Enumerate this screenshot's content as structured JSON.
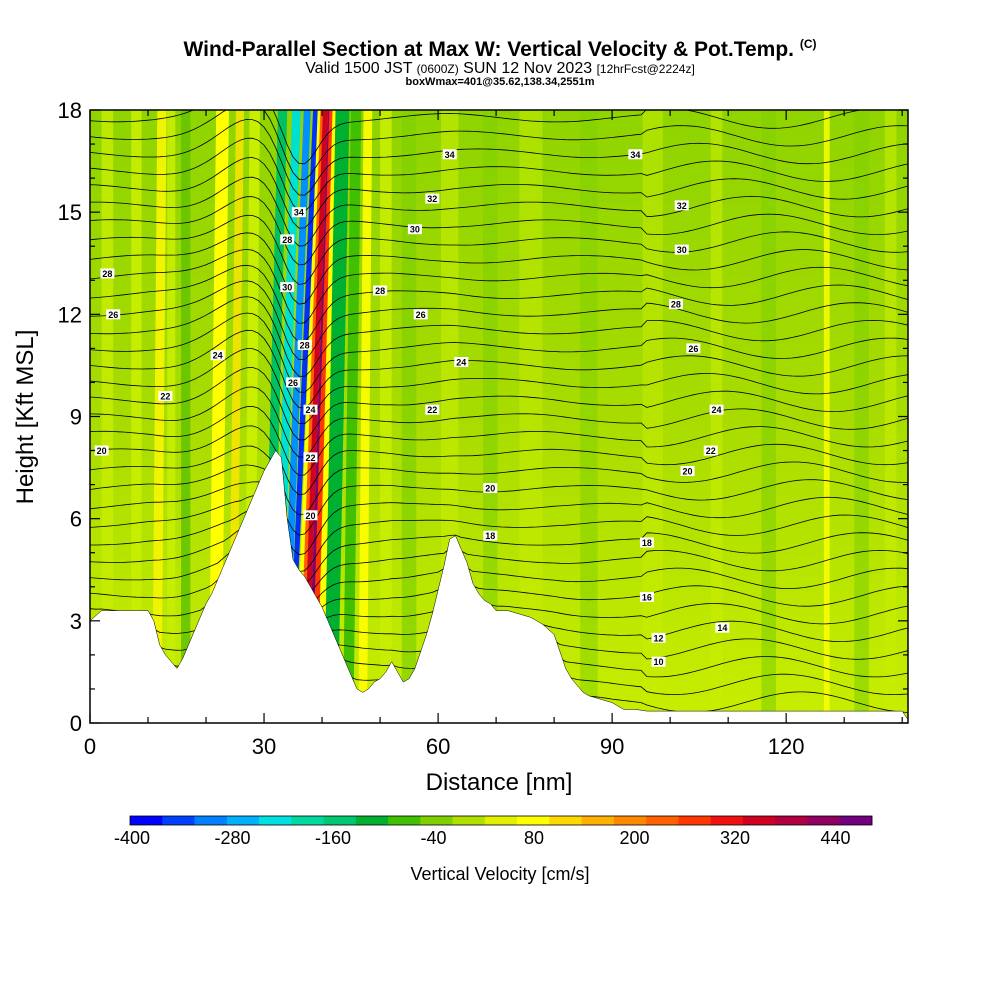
{
  "chart_data": {
    "type": "heatmap",
    "title": "Wind-Parallel Section at Max W: Vertical Velocity & Pot.Temp.",
    "title_mark": "(C)",
    "subtitle_parts": [
      "Valid 1500 JST",
      "(0600Z)",
      "SUN 12 Nov 2023",
      "[12hrFcst@2224z]"
    ],
    "subtitle2": "boxWmax=401@35.62,138.34,2551m",
    "xlabel": "Distance [nm]",
    "ylabel": "Height [Kft MSL]",
    "xlim": [
      0,
      141
    ],
    "ylim": [
      0,
      18
    ],
    "x_ticks": [
      0,
      30,
      60,
      90,
      120
    ],
    "y_ticks": [
      0,
      3,
      6,
      9,
      12,
      15,
      18
    ],
    "colorbar": {
      "title": "Vertical Velocity [cm/s]",
      "labels": [
        "-400",
        "-280",
        "-160",
        "-40",
        "80",
        "200",
        "320",
        "440"
      ],
      "colors": [
        "#0000ff",
        "#0040ff",
        "#0080ff",
        "#00b0ff",
        "#00e0e0",
        "#00d8a0",
        "#00c870",
        "#00b030",
        "#40c000",
        "#80d000",
        "#b0e000",
        "#e0f000",
        "#ffff00",
        "#ffd800",
        "#ffb000",
        "#ff8800",
        "#ff6000",
        "#ff3800",
        "#f01010",
        "#d00020",
        "#b00040",
        "#900060",
        "#700080"
      ]
    },
    "terrain_profile": {
      "x": [
        0,
        2,
        4,
        6,
        8,
        10,
        11,
        12,
        13,
        14,
        15,
        16,
        17,
        18,
        19,
        20,
        21,
        22,
        23,
        24,
        25,
        26,
        27,
        28,
        29,
        30,
        31,
        32,
        33,
        34,
        35,
        36,
        37,
        38,
        39,
        40,
        41,
        42,
        43,
        44,
        45,
        46,
        47,
        48,
        49,
        50,
        51,
        52,
        53,
        54,
        55,
        56,
        57,
        58,
        59,
        60,
        61,
        62,
        63,
        64,
        65,
        66,
        67,
        68,
        69,
        70,
        72,
        74,
        76,
        78,
        80,
        81,
        82,
        83,
        84,
        85,
        86,
        88,
        90,
        91,
        92,
        94,
        96,
        100,
        105,
        110,
        115,
        120,
        125,
        130,
        135,
        140,
        141
      ],
      "height": [
        3.0,
        3.3,
        3.3,
        3.3,
        3.3,
        3.3,
        3.0,
        2.3,
        2.0,
        1.8,
        1.6,
        1.9,
        2.3,
        2.7,
        3.1,
        3.5,
        3.8,
        4.2,
        4.6,
        5.0,
        5.4,
        5.8,
        6.2,
        6.6,
        7.0,
        7.4,
        7.7,
        8.0,
        7.8,
        6.0,
        4.8,
        4.5,
        4.3,
        4.0,
        3.7,
        3.4,
        3.0,
        2.6,
        2.2,
        1.8,
        1.4,
        1.0,
        0.9,
        1.0,
        1.2,
        1.3,
        1.5,
        1.8,
        1.5,
        1.2,
        1.3,
        1.6,
        2.1,
        2.6,
        3.2,
        3.9,
        4.6,
        5.4,
        5.5,
        5.1,
        4.7,
        4.1,
        3.8,
        3.6,
        3.5,
        3.3,
        3.3,
        3.2,
        3.1,
        2.9,
        2.6,
        2.1,
        1.6,
        1.3,
        1.1,
        0.9,
        0.8,
        0.7,
        0.6,
        0.5,
        0.4,
        0.4,
        0.35,
        0.35,
        0.35,
        0.35,
        0.35,
        0.35,
        0.35,
        0.35,
        0.35,
        0.35,
        0.1
      ]
    },
    "theta_contour_labels": [
      {
        "value": "34",
        "x": 62,
        "y": 16.7
      },
      {
        "value": "34",
        "x": 94,
        "y": 16.7
      },
      {
        "value": "32",
        "x": 59,
        "y": 15.4
      },
      {
        "value": "32",
        "x": 102,
        "y": 15.2
      },
      {
        "value": "34",
        "x": 36,
        "y": 15.0
      },
      {
        "value": "30",
        "x": 56,
        "y": 14.5
      },
      {
        "value": "30",
        "x": 102,
        "y": 13.9
      },
      {
        "value": "28",
        "x": 3,
        "y": 13.2
      },
      {
        "value": "28",
        "x": 34,
        "y": 14.2
      },
      {
        "value": "28",
        "x": 50,
        "y": 12.7
      },
      {
        "value": "28",
        "x": 101,
        "y": 12.3
      },
      {
        "value": "26",
        "x": 4,
        "y": 12.0
      },
      {
        "value": "26",
        "x": 57,
        "y": 12.0
      },
      {
        "value": "26",
        "x": 104,
        "y": 11.0
      },
      {
        "value": "30",
        "x": 34,
        "y": 12.8
      },
      {
        "value": "28",
        "x": 37,
        "y": 11.1
      },
      {
        "value": "24",
        "x": 22,
        "y": 10.8
      },
      {
        "value": "24",
        "x": 64,
        "y": 10.6
      },
      {
        "value": "26",
        "x": 35,
        "y": 10.0
      },
      {
        "value": "22",
        "x": 13,
        "y": 9.6
      },
      {
        "value": "24",
        "x": 38,
        "y": 9.2
      },
      {
        "value": "22",
        "x": 59,
        "y": 9.2
      },
      {
        "value": "24",
        "x": 108,
        "y": 9.2
      },
      {
        "value": "20",
        "x": 2,
        "y": 8.0
      },
      {
        "value": "22",
        "x": 38,
        "y": 7.8
      },
      {
        "value": "22",
        "x": 107,
        "y": 8.0
      },
      {
        "value": "20",
        "x": 103,
        "y": 7.4
      },
      {
        "value": "20",
        "x": 69,
        "y": 6.9
      },
      {
        "value": "20",
        "x": 38,
        "y": 6.1
      },
      {
        "value": "18",
        "x": 69,
        "y": 5.5
      },
      {
        "value": "18",
        "x": 96,
        "y": 5.3
      },
      {
        "value": "16",
        "x": 96,
        "y": 3.7
      },
      {
        "value": "14",
        "x": 109,
        "y": 2.8
      },
      {
        "value": "12",
        "x": 98,
        "y": 2.5
      },
      {
        "value": "10",
        "x": 98,
        "y": 1.8
      }
    ]
  }
}
